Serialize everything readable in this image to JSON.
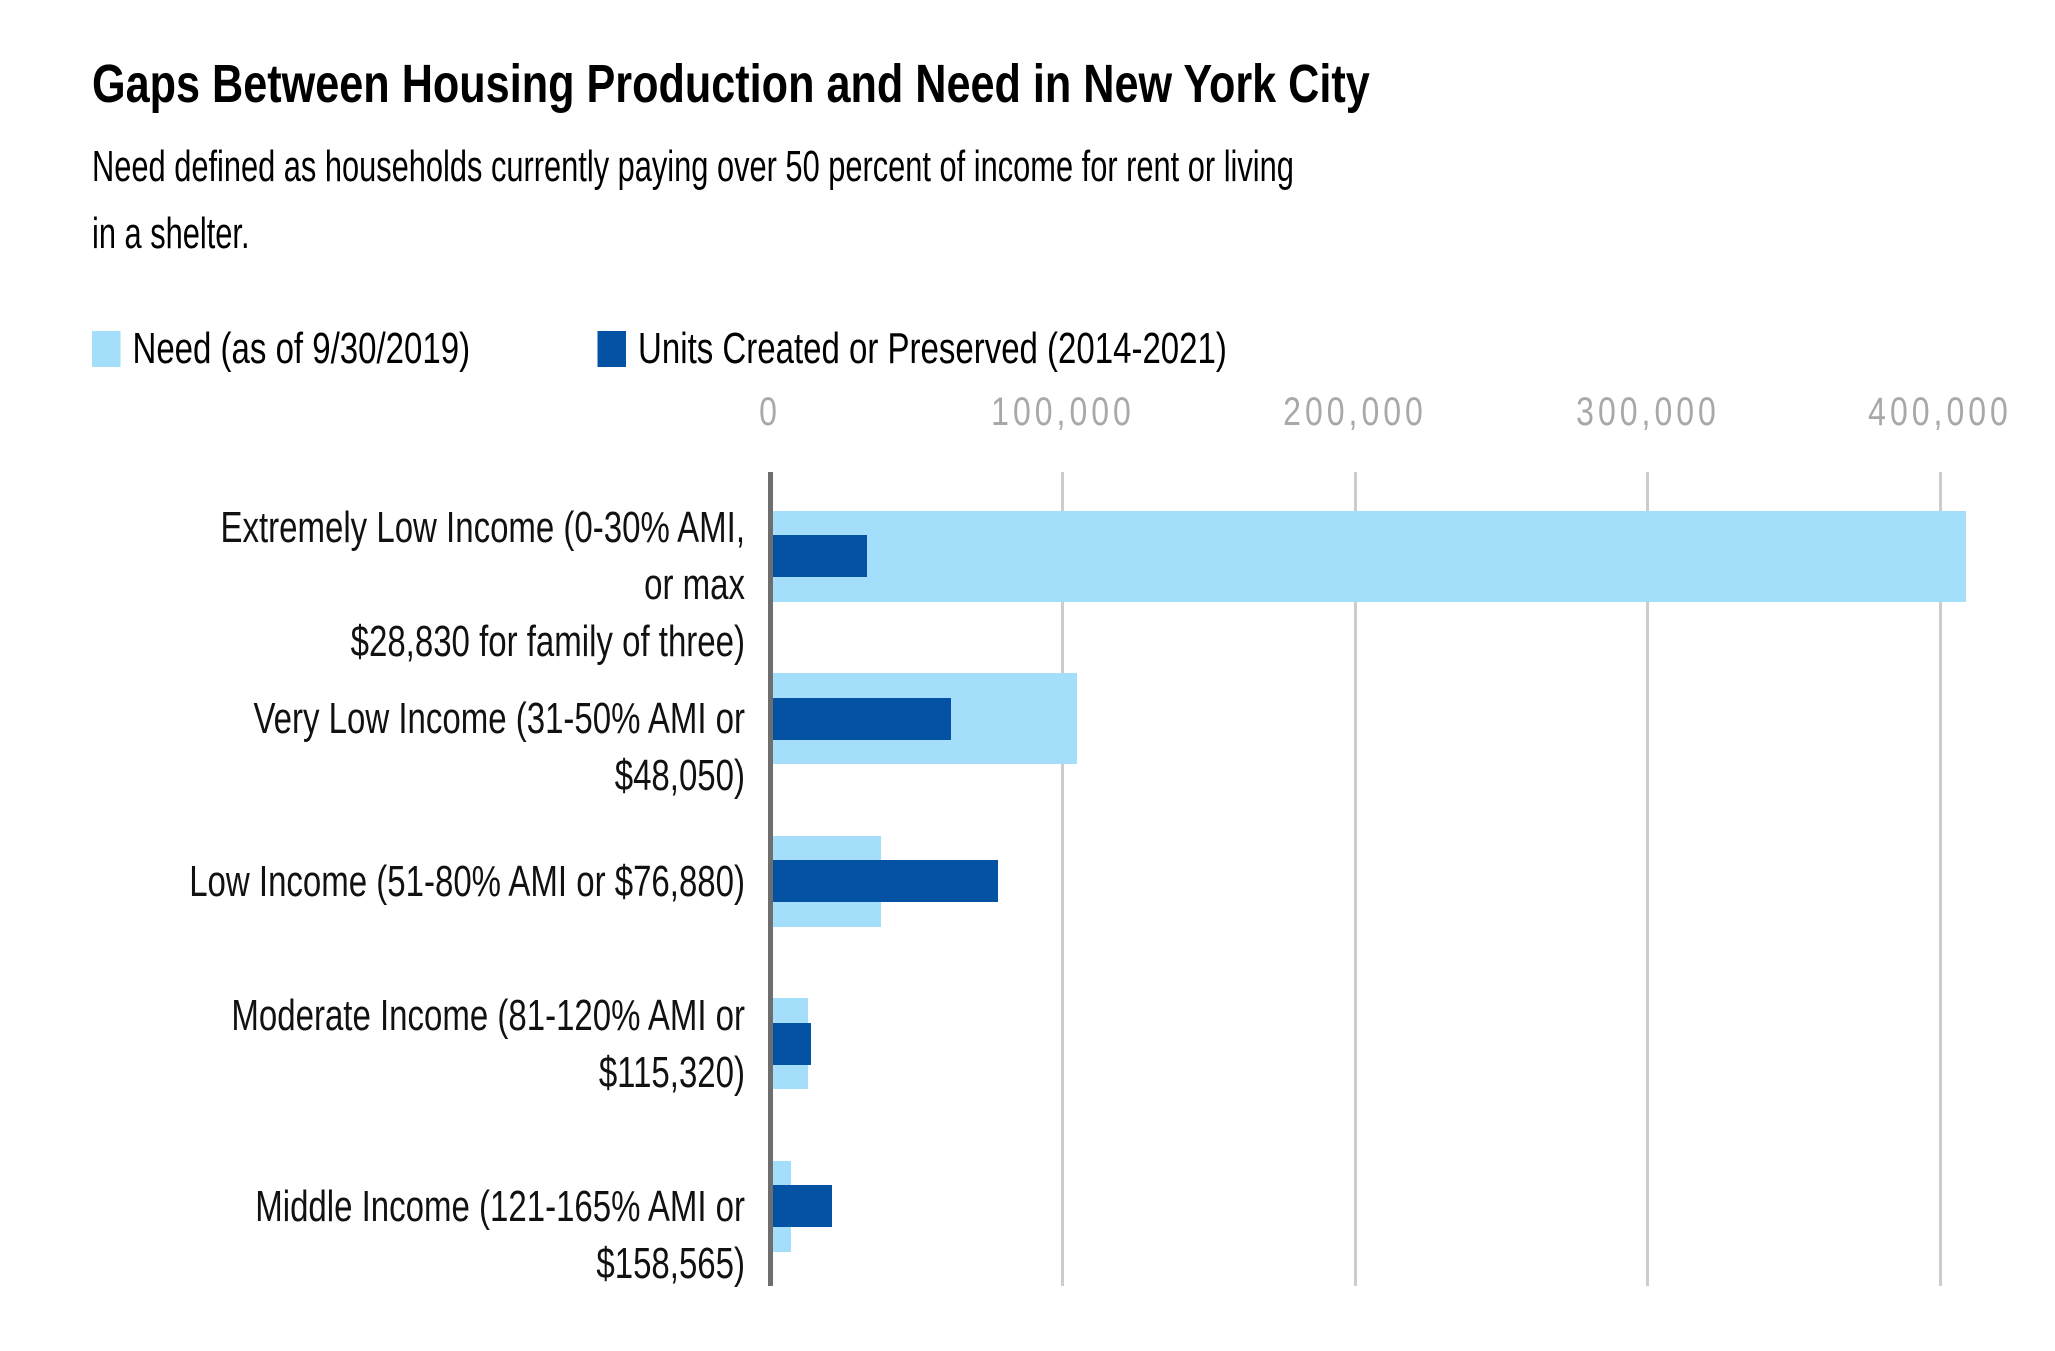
{
  "chart_data": {
    "type": "bar",
    "orientation": "horizontal",
    "title": "Gaps Between Housing Production and Need in New York City",
    "subtitle": "Need defined as households currently paying over 50 percent of income for rent or living\nin a shelter.",
    "categories": [
      [
        "Extremely Low Income (0-30% AMI, or max",
        "$28,830 for family of three)"
      ],
      [
        "Very Low Income (31-50% AMI or $48,050)"
      ],
      [
        "Low Income (51-80% AMI or $76,880)"
      ],
      [
        "Moderate Income (81-120% AMI or",
        "$115,320)"
      ],
      [
        "Middle Income (121-165% AMI or $158,565)"
      ]
    ],
    "series": [
      {
        "name": "Need (as of 9/30/2019)",
        "color": "#a5defa",
        "values": [
          408000,
          104000,
          37000,
          12000,
          6000
        ]
      },
      {
        "name": "Units Created or Preserved (2014-2021)",
        "color": "#0452a4",
        "values": [
          32000,
          61000,
          77000,
          13000,
          20000
        ]
      }
    ],
    "x_axis": {
      "ticks": [
        "0",
        "100,000",
        "200,000",
        "300,000",
        "400,000"
      ],
      "tick_values": [
        0,
        100000,
        200000,
        300000,
        400000
      ],
      "range": [
        0,
        400000
      ],
      "gridlines": true
    },
    "legend_position": "top",
    "xlabel": "",
    "ylabel": ""
  },
  "colors": {
    "grid": "#cccccc",
    "axis_line": "#6e6e6e",
    "tick_label": "#a8a8a8",
    "text": "#000000"
  }
}
